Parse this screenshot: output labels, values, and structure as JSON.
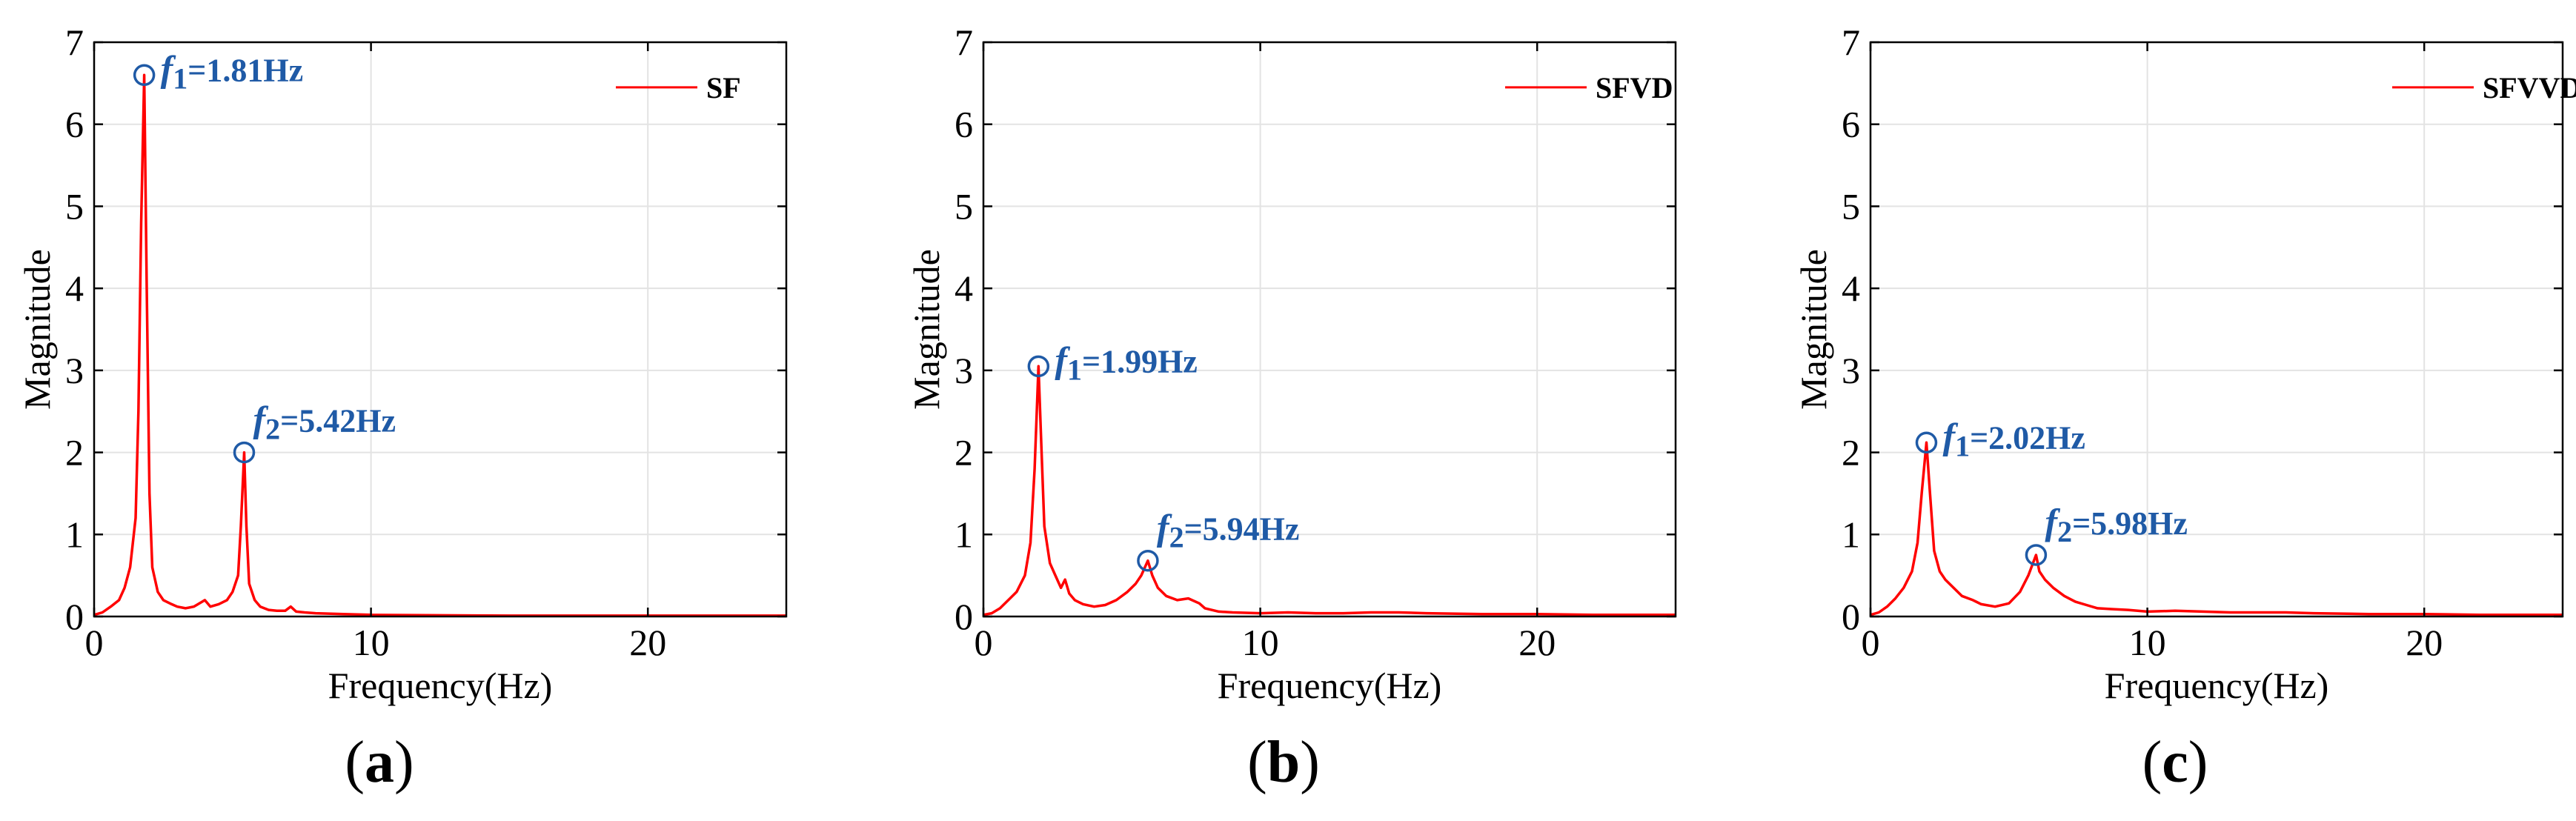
{
  "chart_data": [
    {
      "type": "line",
      "panel": "a",
      "caption_letter": "a",
      "legend": "SF",
      "legend_position": "top-right",
      "xlabel": "Frequency(Hz)",
      "ylabel": "Magnitude",
      "xlim": [
        0,
        25
      ],
      "ylim": [
        0,
        7
      ],
      "xticks": [
        0,
        10,
        20
      ],
      "yticks": [
        0,
        1,
        2,
        3,
        4,
        5,
        6,
        7
      ],
      "grid": true,
      "line_color": "#ff0000",
      "annotation_color": "#1f5aa6",
      "peaks": [
        {
          "f": 1.81,
          "mag": 6.6,
          "sym": "f",
          "sub": "1",
          "label": "=1.81Hz"
        },
        {
          "f": 5.42,
          "mag": 2.0,
          "sym": "f",
          "sub": "2",
          "label": "=5.42Hz"
        }
      ],
      "x": [
        0,
        0.3,
        0.6,
        0.9,
        1.1,
        1.3,
        1.5,
        1.6,
        1.7,
        1.81,
        1.9,
        2.0,
        2.1,
        2.3,
        2.5,
        2.8,
        3.0,
        3.3,
        3.6,
        3.9,
        4.0,
        4.2,
        4.5,
        4.8,
        5.0,
        5.2,
        5.3,
        5.42,
        5.5,
        5.6,
        5.8,
        6.0,
        6.3,
        6.6,
        6.9,
        7.1,
        7.3,
        7.6,
        8.0,
        9.0,
        10.0,
        12.0,
        15.0,
        18.0,
        21.0,
        25.0
      ],
      "y": [
        0.02,
        0.05,
        0.12,
        0.2,
        0.35,
        0.6,
        1.2,
        2.5,
        4.8,
        6.6,
        4.0,
        1.5,
        0.6,
        0.3,
        0.2,
        0.15,
        0.12,
        0.1,
        0.12,
        0.18,
        0.2,
        0.12,
        0.15,
        0.2,
        0.3,
        0.5,
        1.1,
        2.0,
        1.1,
        0.4,
        0.2,
        0.12,
        0.08,
        0.07,
        0.07,
        0.12,
        0.06,
        0.05,
        0.04,
        0.03,
        0.02,
        0.015,
        0.01,
        0.01,
        0.01,
        0.01
      ]
    },
    {
      "type": "line",
      "panel": "b",
      "caption_letter": "b",
      "legend": "SFVD",
      "legend_position": "top-right",
      "xlabel": "Frequency(Hz)",
      "ylabel": "Magnitude",
      "xlim": [
        0,
        25
      ],
      "ylim": [
        0,
        7
      ],
      "xticks": [
        0,
        10,
        20
      ],
      "yticks": [
        0,
        1,
        2,
        3,
        4,
        5,
        6,
        7
      ],
      "grid": true,
      "line_color": "#ff0000",
      "annotation_color": "#1f5aa6",
      "peaks": [
        {
          "f": 1.99,
          "mag": 3.05,
          "sym": "f",
          "sub": "1",
          "label": "=1.99Hz"
        },
        {
          "f": 5.94,
          "mag": 0.68,
          "sym": "f",
          "sub": "2",
          "label": "=5.94Hz"
        }
      ],
      "x": [
        0,
        0.3,
        0.6,
        0.9,
        1.2,
        1.5,
        1.7,
        1.85,
        1.99,
        2.1,
        2.2,
        2.4,
        2.6,
        2.8,
        2.95,
        3.1,
        3.3,
        3.6,
        4.0,
        4.4,
        4.8,
        5.2,
        5.5,
        5.7,
        5.94,
        6.1,
        6.3,
        6.6,
        7.0,
        7.4,
        7.8,
        8.0,
        8.5,
        9.0,
        10.0,
        11.0,
        12.0,
        13.0,
        14.0,
        15.0,
        16.0,
        18.0,
        20.0,
        22.0,
        25.0
      ],
      "y": [
        0.02,
        0.04,
        0.1,
        0.2,
        0.3,
        0.5,
        0.9,
        1.8,
        3.05,
        2.0,
        1.1,
        0.65,
        0.5,
        0.35,
        0.45,
        0.28,
        0.2,
        0.15,
        0.12,
        0.14,
        0.2,
        0.3,
        0.4,
        0.5,
        0.68,
        0.5,
        0.35,
        0.25,
        0.2,
        0.22,
        0.16,
        0.1,
        0.06,
        0.05,
        0.04,
        0.05,
        0.04,
        0.04,
        0.05,
        0.05,
        0.04,
        0.03,
        0.03,
        0.02,
        0.02
      ]
    },
    {
      "type": "line",
      "panel": "c",
      "caption_letter": "c",
      "legend": "SFVVD",
      "legend_position": "top-right",
      "xlabel": "Frequency(Hz)",
      "ylabel": "Magnitude",
      "xlim": [
        0,
        25
      ],
      "ylim": [
        0,
        7
      ],
      "xticks": [
        0,
        10,
        20
      ],
      "yticks": [
        0,
        1,
        2,
        3,
        4,
        5,
        6,
        7
      ],
      "grid": true,
      "line_color": "#ff0000",
      "annotation_color": "#1f5aa6",
      "peaks": [
        {
          "f": 2.02,
          "mag": 2.12,
          "sym": "f",
          "sub": "1",
          "label": "=2.02Hz"
        },
        {
          "f": 5.98,
          "mag": 0.75,
          "sym": "f",
          "sub": "2",
          "label": "=5.98Hz"
        }
      ],
      "x": [
        0,
        0.3,
        0.6,
        0.9,
        1.2,
        1.5,
        1.7,
        1.85,
        2.02,
        2.15,
        2.3,
        2.5,
        2.7,
        3.0,
        3.3,
        3.7,
        4.0,
        4.5,
        5.0,
        5.4,
        5.7,
        5.98,
        6.1,
        6.3,
        6.6,
        7.0,
        7.4,
        7.8,
        8.2,
        8.7,
        9.3,
        10.0,
        11.0,
        12.0,
        13.0,
        14.0,
        15.0,
        16.0,
        18.0,
        20.0,
        22.0,
        25.0
      ],
      "y": [
        0.02,
        0.05,
        0.12,
        0.22,
        0.35,
        0.55,
        0.9,
        1.5,
        2.12,
        1.5,
        0.8,
        0.55,
        0.45,
        0.35,
        0.25,
        0.2,
        0.15,
        0.12,
        0.16,
        0.3,
        0.5,
        0.75,
        0.55,
        0.45,
        0.35,
        0.25,
        0.18,
        0.14,
        0.1,
        0.09,
        0.08,
        0.06,
        0.07,
        0.06,
        0.05,
        0.05,
        0.05,
        0.04,
        0.03,
        0.03,
        0.02,
        0.02
      ]
    }
  ]
}
